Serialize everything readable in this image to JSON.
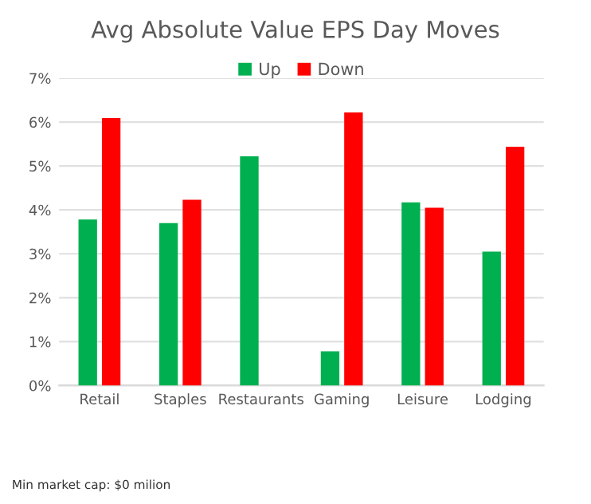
{
  "chart_data": {
    "type": "bar",
    "title": "Avg Absolute Value EPS Day Moves",
    "categories": [
      "Retail",
      "Staples",
      "Restaurants",
      "Gaming",
      "Leisure",
      "Lodging"
    ],
    "series": [
      {
        "name": "Up",
        "color": "#00b050",
        "values": [
          3.78,
          3.7,
          5.22,
          0.78,
          4.17,
          3.05
        ]
      },
      {
        "name": "Down",
        "color": "#ff0000",
        "values": [
          6.09,
          4.23,
          null,
          6.22,
          4.05,
          5.44
        ]
      }
    ],
    "ylim": [
      0,
      7
    ],
    "yticks": [
      {
        "value": 0,
        "label": "0%"
      },
      {
        "value": 1,
        "label": "1%"
      },
      {
        "value": 2,
        "label": "2%"
      },
      {
        "value": 3,
        "label": "3%"
      },
      {
        "value": 4,
        "label": "4%"
      },
      {
        "value": 5,
        "label": "5%"
      },
      {
        "value": 6,
        "label": "6%"
      },
      {
        "value": 7,
        "label": "7%"
      }
    ],
    "grid": "y",
    "legend": "top",
    "annotations": [
      "Min market cap: $0 milion"
    ]
  }
}
